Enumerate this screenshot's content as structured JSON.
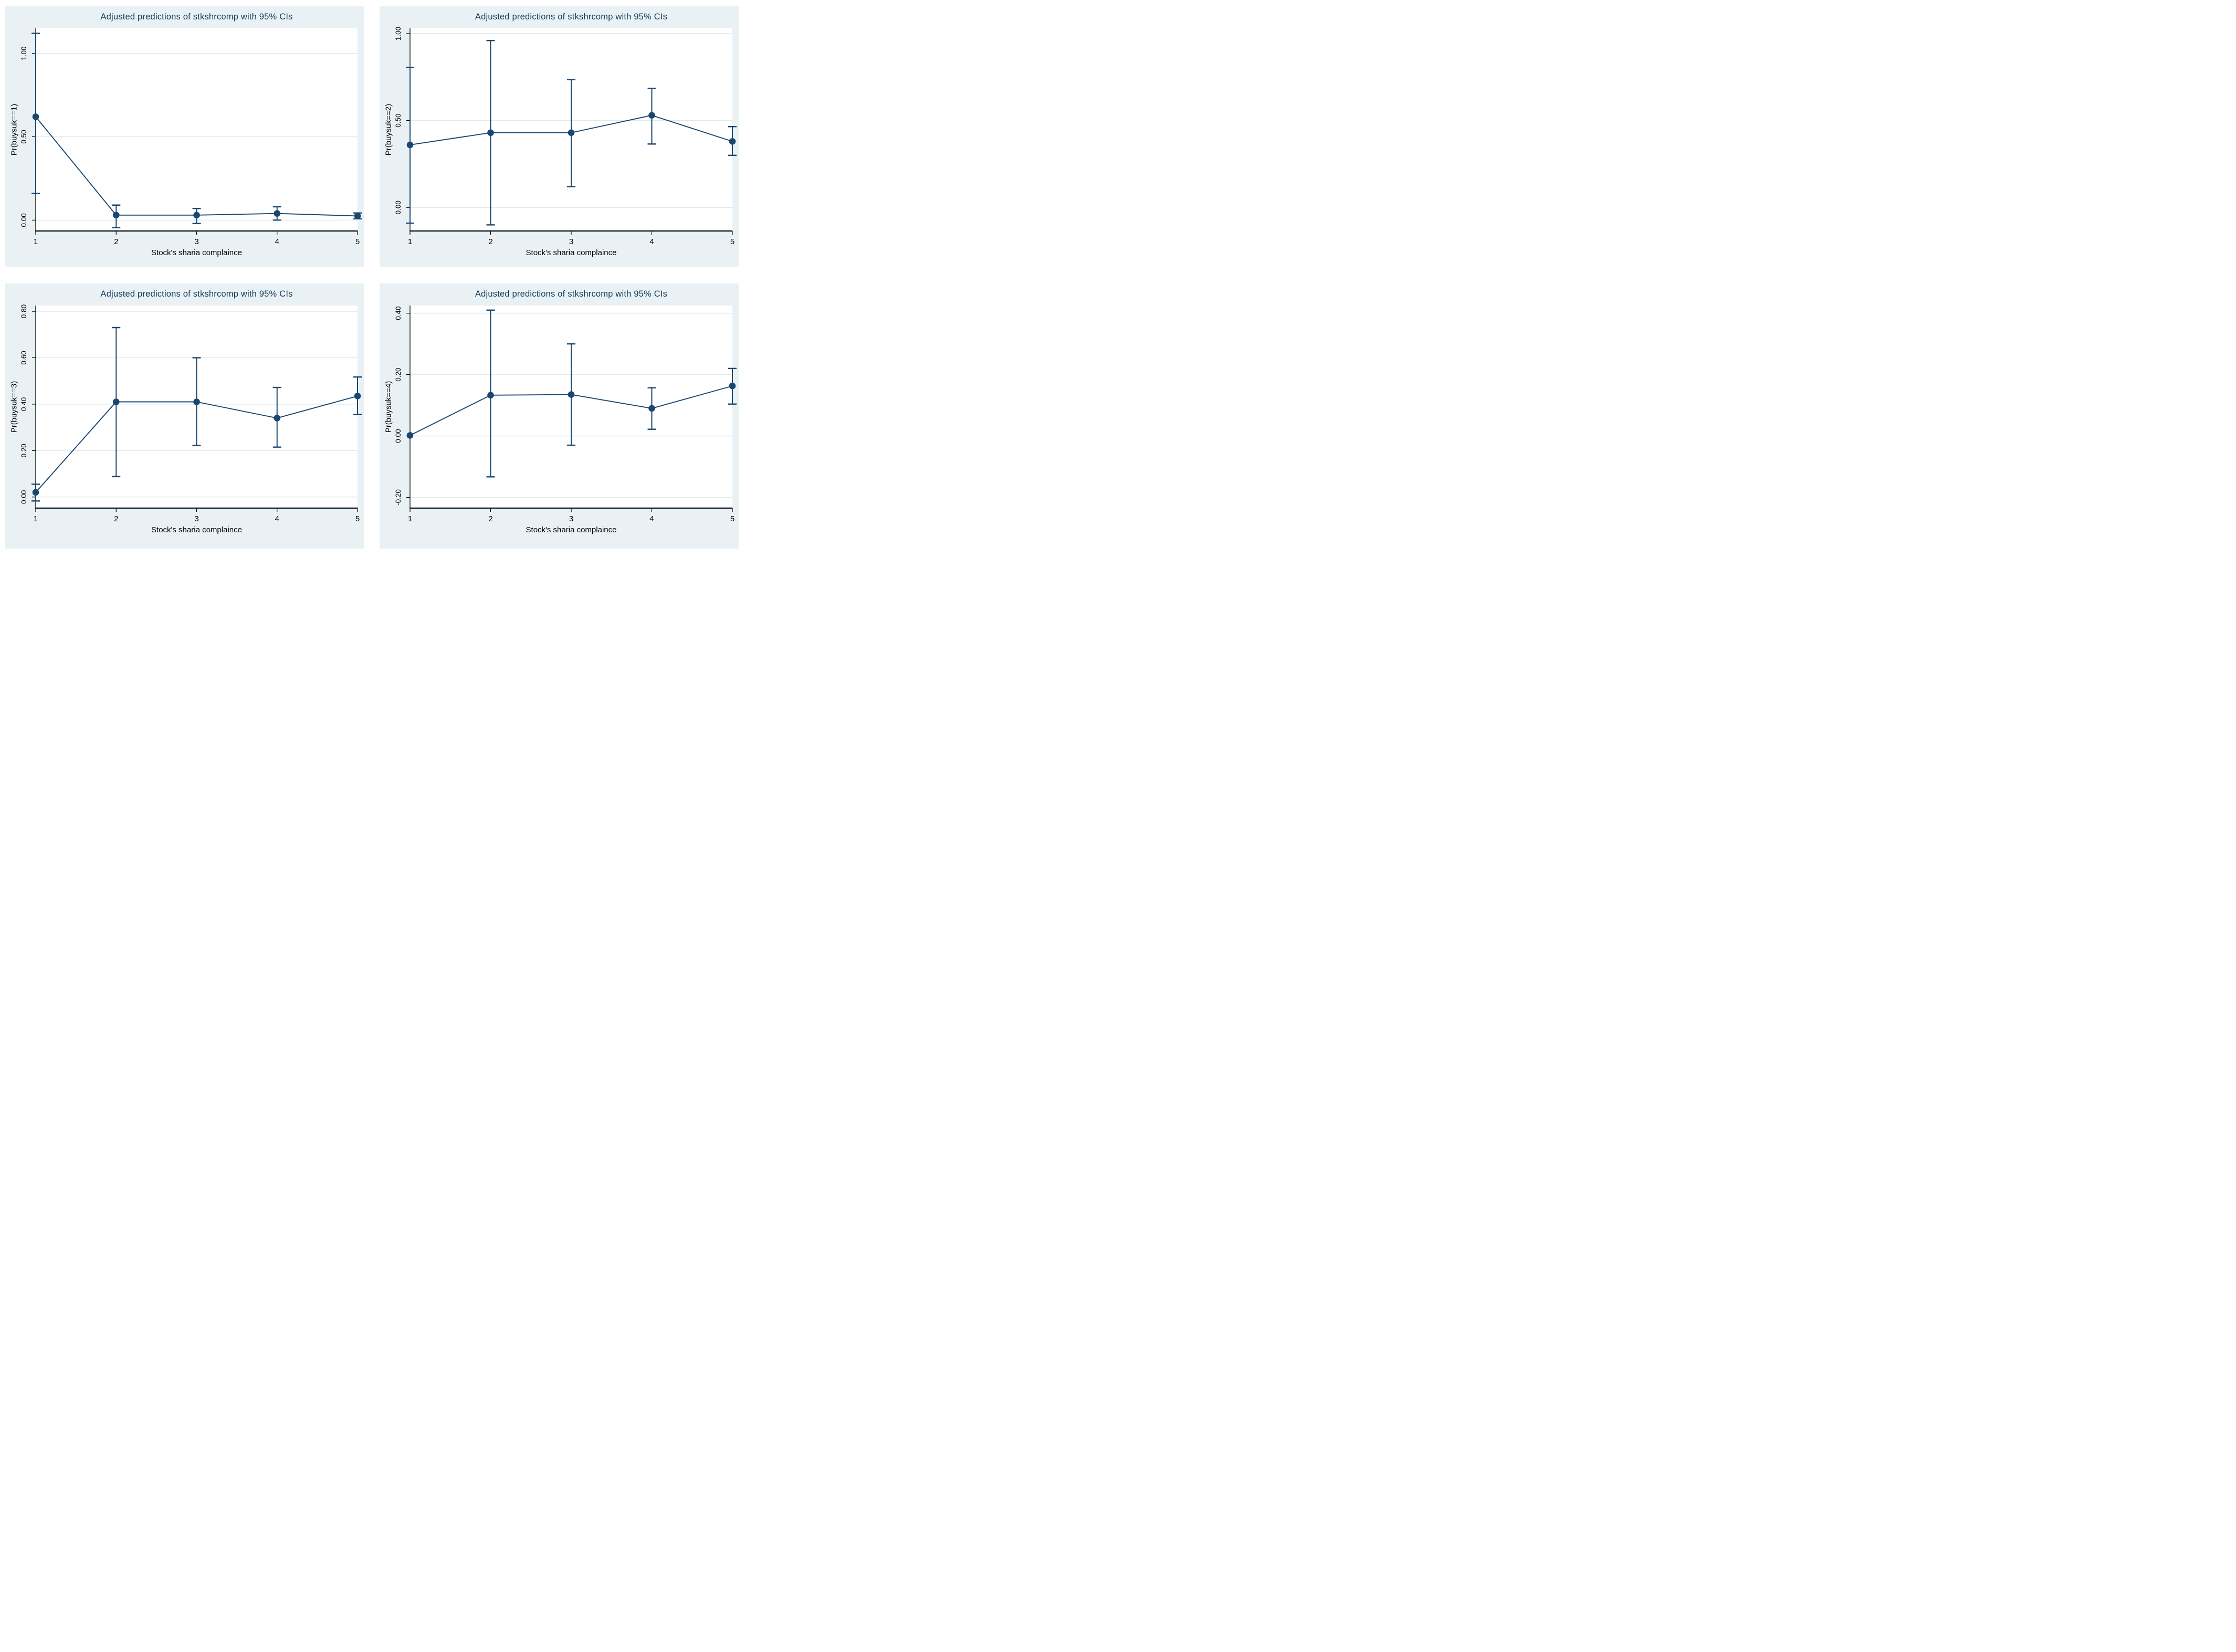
{
  "window": {
    "description": "Four-panel figure of adjusted prediction plots with 95% confidence intervals"
  },
  "style": {
    "page_bg": "#ffffff",
    "panel_bg": "#e9f1f4",
    "plot_bg": "#ffffff",
    "grid_color": "#dfeaee",
    "line_color": "#1a476f",
    "marker_color": "#1a476f",
    "title_color": "#133b5c",
    "axis_color": "#000000",
    "x_axis_line_color": "#14202b"
  },
  "chart_data": [
    {
      "type": "line",
      "title": "Adjusted predictions of stkshrcomp with 95% CIs",
      "xlabel": "Stock's sharia complaince",
      "ylabel": "Pr(buysuk==1)",
      "x": [
        1,
        2,
        3,
        4,
        5
      ],
      "xtick_labels": [
        "1",
        "2",
        "3",
        "4",
        "5"
      ],
      "series": [
        {
          "name": "Adjusted prediction",
          "values": [
            0.62,
            0.03,
            0.03,
            0.04,
            0.025
          ],
          "ci_low": [
            0.16,
            -0.045,
            -0.02,
            0.0,
            0.008
          ],
          "ci_high": [
            1.12,
            0.09,
            0.07,
            0.08,
            0.043
          ]
        }
      ],
      "yticks": [
        0.0,
        0.5,
        1.0
      ],
      "ytick_labels": [
        "0.00",
        "0.50",
        "1.00"
      ],
      "ylim": [
        -0.065,
        1.15
      ],
      "grid": true,
      "legend": "none"
    },
    {
      "type": "line",
      "title": "Adjusted predictions of stkshrcomp with 95% CIs",
      "xlabel": "Stock's sharia complaince",
      "ylabel": "Pr(buysuk==2)",
      "x": [
        1,
        2,
        3,
        4,
        5
      ],
      "xtick_labels": [
        "1",
        "2",
        "3",
        "4",
        "5"
      ],
      "series": [
        {
          "name": "Adjusted prediction",
          "values": [
            0.36,
            0.43,
            0.43,
            0.53,
            0.38
          ],
          "ci_low": [
            -0.09,
            -0.1,
            0.12,
            0.365,
            0.3
          ],
          "ci_high": [
            0.805,
            0.96,
            0.735,
            0.685,
            0.465
          ]
        }
      ],
      "yticks": [
        0.0,
        0.5,
        1.0
      ],
      "ytick_labels": [
        "0.00",
        "0.50",
        "1.00"
      ],
      "ylim": [
        -0.135,
        1.03
      ],
      "grid": true,
      "legend": "none"
    },
    {
      "type": "line",
      "title": "Adjusted predictions of stkshrcomp with 95% CIs",
      "xlabel": "Stock's sharia complaince",
      "ylabel": "Pr(buysuk==3)",
      "x": [
        1,
        2,
        3,
        4,
        5
      ],
      "xtick_labels": [
        "1",
        "2",
        "3",
        "4",
        "5"
      ],
      "series": [
        {
          "name": "Adjusted prediction",
          "values": [
            0.02,
            0.41,
            0.41,
            0.34,
            0.435
          ],
          "ci_low": [
            -0.017,
            0.088,
            0.222,
            0.215,
            0.355
          ],
          "ci_high": [
            0.055,
            0.73,
            0.6,
            0.472,
            0.517
          ]
        }
      ],
      "yticks": [
        0.0,
        0.2,
        0.4,
        0.6,
        0.8
      ],
      "ytick_labels": [
        "0.00",
        "0.20",
        "0.40",
        "0.60",
        "0.80"
      ],
      "ylim": [
        -0.048,
        0.825
      ],
      "grid": true,
      "legend": "none"
    },
    {
      "type": "line",
      "title": "Adjusted predictions of stkshrcomp with 95% CIs",
      "xlabel": "Stock's sharia complaince",
      "ylabel": "Pr(buysuk==4)",
      "x": [
        1,
        2,
        3,
        4,
        5
      ],
      "xtick_labels": [
        "1",
        "2",
        "3",
        "4",
        "5"
      ],
      "series": [
        {
          "name": "Adjusted prediction",
          "values": [
            0.002,
            0.133,
            0.135,
            0.09,
            0.163
          ],
          "ci_low": [
            0.002,
            -0.133,
            -0.03,
            0.022,
            0.104
          ],
          "ci_high": [
            0.002,
            0.41,
            0.3,
            0.157,
            0.22
          ]
        }
      ],
      "yticks": [
        -0.2,
        0.0,
        0.2,
        0.4
      ],
      "ytick_labels": [
        "-0.20",
        "0.00",
        "0.20",
        "0.40"
      ],
      "ylim": [
        -0.235,
        0.425
      ],
      "grid": true,
      "legend": "none"
    }
  ]
}
